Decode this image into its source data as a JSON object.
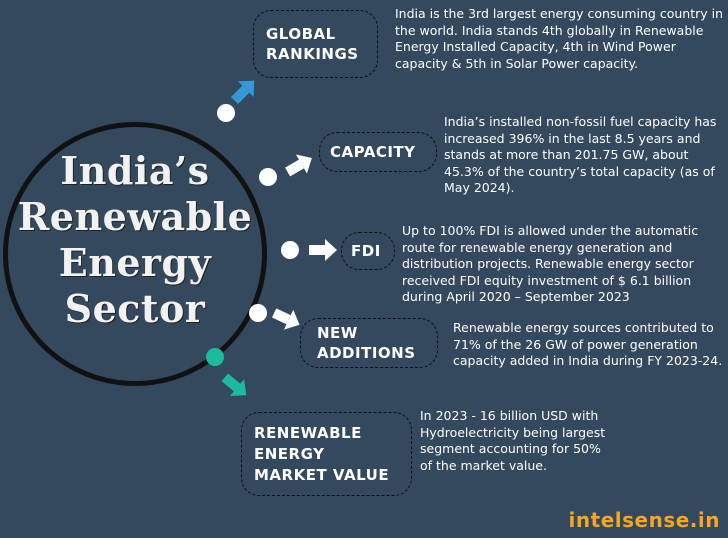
{
  "hub": {
    "title_lines": [
      "India’s",
      "Renewable",
      "Energy",
      "Sector"
    ]
  },
  "items": [
    {
      "label": "GLOBAL\nRANKINGS",
      "text": "India is the 3rd largest energy consuming country in the world. India stands 4th globally in Renewable Energy Installed Capacity, 4th in Wind Power capacity & 5th in Solar Power capacity.",
      "arrow_color": "#3498db"
    },
    {
      "label": "CAPACITY",
      "text": "India’s installed non-fossil fuel capacity has increased 396% in the last 8.5 years and stands at more than 201.75 GW, about 45.3% of the country’s total capacity (as of May 2024).",
      "arrow_color": "#ffffff"
    },
    {
      "label": "FDI",
      "text": "Up to 100% FDI is allowed under the automatic route for renewable energy generation and distribution projects. Renewable energy sector received FDI equity investment of $ 6.1 billion during April 2020 – September 2023",
      "arrow_color": "#ffffff"
    },
    {
      "label": "NEW\nADDITIONS",
      "text": "Renewable energy sources contributed to 71% of the 26 GW of power generation capacity added in India during FY 2023-24.",
      "arrow_color": "#ffffff"
    },
    {
      "label": "RENEWABLE\nENERGY\nMARKET VALUE",
      "text": "In 2023 - 16 billion USD with Hydroelectricity being largest segment accounting for 50% of the market value.",
      "arrow_color": "#1abc9c"
    }
  ],
  "brand": "intelsense.in",
  "colors": {
    "background": "#34495e",
    "brand": "#f5a623",
    "outline": "#111111"
  }
}
